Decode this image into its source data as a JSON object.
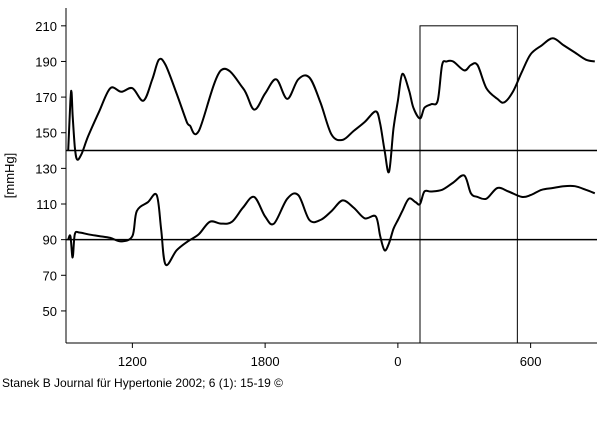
{
  "citation": "Stanek B Journal für Hypertonie 2002; 6 (1): 15-19 ©",
  "chart_data": {
    "type": "line",
    "ylabel": "[mmHg]",
    "xlabel": "",
    "title": "",
    "xlim": [
      1500,
      -900
    ],
    "ylim": [
      32,
      220
    ],
    "x_ticks": [
      1200,
      1800,
      0,
      600
    ],
    "x_tick_values": [
      1200,
      600,
      0,
      -600
    ],
    "y_ticks": [
      50,
      70,
      90,
      110,
      130,
      150,
      170,
      190,
      210
    ],
    "reference_lines": [
      140,
      90
    ],
    "highlight_window": {
      "x": [
        -100,
        -540
      ],
      "y": [
        32,
        210
      ]
    },
    "series": [
      {
        "x": [
          1490,
          1480,
          1475,
          1470,
          1460,
          1450,
          1430,
          1400,
          1350,
          1300,
          1250,
          1200,
          1150,
          1110,
          1080,
          1050,
          1000,
          960,
          950,
          940,
          900,
          800,
          700,
          650,
          600,
          550,
          500,
          450,
          400,
          350,
          300,
          250,
          200,
          150,
          100,
          80,
          60,
          40,
          20,
          0,
          -20,
          -50,
          -70,
          -100,
          -120,
          -150,
          -180,
          -200,
          -220,
          -250,
          -300,
          -330,
          -360,
          -400,
          -450,
          -480,
          -520,
          -560,
          -600,
          -650,
          -700,
          -750,
          -800,
          -850,
          -890
        ],
        "y": [
          140,
          168,
          173,
          160,
          142,
          135,
          138,
          148,
          162,
          175,
          173,
          175,
          168,
          180,
          191,
          188,
          172,
          158,
          155,
          154,
          151,
          185,
          175,
          163,
          172,
          180,
          169,
          180,
          181,
          167,
          149,
          146,
          151,
          156,
          162,
          155,
          140,
          128,
          152,
          168,
          183,
          174,
          164,
          158,
          164,
          166,
          168,
          188,
          190,
          190,
          185,
          188,
          188,
          175,
          169,
          167,
          173,
          184,
          194,
          199,
          203,
          199,
          195,
          191,
          190
        ]
      },
      {
        "x": [
          1490,
          1480,
          1470,
          1460,
          1440,
          1400,
          1350,
          1300,
          1250,
          1200,
          1180,
          1130,
          1090,
          1070,
          1050,
          1000,
          950,
          900,
          850,
          800,
          750,
          700,
          650,
          600,
          560,
          500,
          450,
          400,
          350,
          300,
          250,
          200,
          150,
          100,
          80,
          60,
          40,
          20,
          0,
          -20,
          -50,
          -80,
          -100,
          -120,
          -150,
          -200,
          -250,
          -300,
          -330,
          -360,
          -400,
          -450,
          -500,
          -560,
          -600,
          -650,
          -700,
          -750,
          -800,
          -850,
          -890
        ],
        "y": [
          90,
          92,
          80,
          93,
          94,
          93,
          92,
          91,
          89,
          92,
          106,
          111,
          115,
          96,
          76,
          84,
          89,
          93,
          100,
          99,
          100,
          108,
          114,
          103,
          99,
          113,
          115,
          101,
          101,
          106,
          112,
          108,
          102,
          103,
          92,
          84,
          88,
          96,
          101,
          106,
          113,
          111,
          110,
          117,
          117,
          118,
          122,
          126,
          116,
          114,
          113,
          119,
          117,
          114,
          115,
          118,
          119,
          120,
          120,
          118,
          116
        ]
      }
    ]
  }
}
